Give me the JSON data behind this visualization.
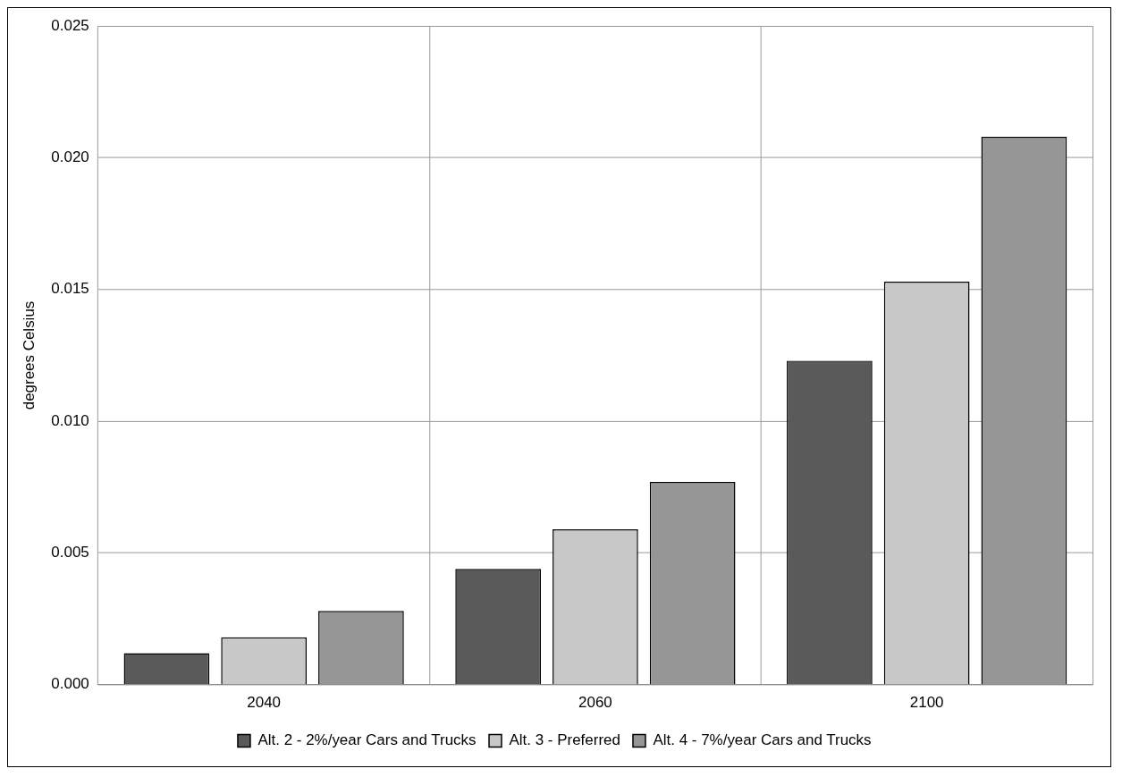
{
  "chart_data": {
    "type": "bar",
    "ylabel": "degrees Celsius",
    "categories": [
      "2040",
      "2060",
      "2100"
    ],
    "series": [
      {
        "name": "Alt. 2 - 2%/year Cars and Trucks",
        "color": "#5a5a5a",
        "values": [
          0.0012,
          0.0044,
          0.0123
        ]
      },
      {
        "name": "Alt. 3 - Preferred",
        "color": "#c8c8c8",
        "values": [
          0.0018,
          0.0059,
          0.0153
        ]
      },
      {
        "name": "Alt. 4 - 7%/year Cars and Trucks",
        "color": "#969696",
        "values": [
          0.0028,
          0.0077,
          0.0208
        ]
      }
    ],
    "ylim": [
      0,
      0.025
    ],
    "yticks": [
      {
        "value": 0,
        "label": "0.000"
      },
      {
        "value": 0.005,
        "label": "0.005"
      },
      {
        "value": 0.01,
        "label": "0.010"
      },
      {
        "value": 0.015,
        "label": "0.015"
      },
      {
        "value": 0.02,
        "label": "0.020"
      },
      {
        "value": 0.025,
        "label": "0.025"
      }
    ],
    "grid": true,
    "legend": "bottom"
  }
}
